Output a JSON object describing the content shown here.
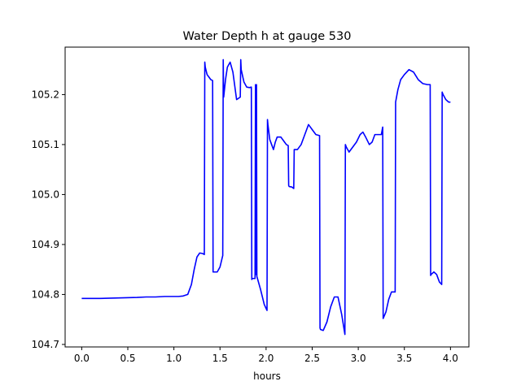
{
  "chart_data": {
    "type": "line",
    "title": "Water Depth h at gauge 530",
    "xlabel": "hours",
    "ylabel": "",
    "xlim": [
      -0.18,
      4.2
    ],
    "ylim": [
      104.695,
      105.295
    ],
    "xticks": [
      0.0,
      0.5,
      1.0,
      1.5,
      2.0,
      2.5,
      3.0,
      3.5,
      4.0
    ],
    "xtick_labels": [
      "0.0",
      "0.5",
      "1.0",
      "1.5",
      "2.0",
      "2.5",
      "3.0",
      "3.5",
      "4.0"
    ],
    "yticks": [
      104.7,
      104.8,
      104.9,
      105.0,
      105.1,
      105.2
    ],
    "ytick_labels": [
      "104.7",
      "104.8",
      "104.9",
      "105.0",
      "105.1",
      "105.2"
    ],
    "grid": false,
    "series": [
      {
        "color": "#0000ff",
        "x": [
          0.0,
          0.2,
          0.4,
          0.6,
          0.7,
          0.8,
          0.9,
          1.0,
          1.05,
          1.1,
          1.15,
          1.19,
          1.22,
          1.25,
          1.28,
          1.31,
          1.33,
          1.335,
          1.34,
          1.36,
          1.38,
          1.4,
          1.42,
          1.425,
          1.43,
          1.47,
          1.5,
          1.53,
          1.535,
          1.54,
          1.56,
          1.58,
          1.61,
          1.64,
          1.68,
          1.72,
          1.725,
          1.73,
          1.76,
          1.79,
          1.82,
          1.84,
          1.845,
          1.85,
          1.88,
          1.885,
          1.89,
          1.893,
          1.896,
          1.9,
          1.94,
          1.98,
          2.01,
          2.015,
          2.02,
          2.04,
          2.06,
          2.08,
          2.1,
          2.12,
          2.14,
          2.16,
          2.18,
          2.2,
          2.22,
          2.24,
          2.245,
          2.25,
          2.28,
          2.3,
          2.305,
          2.31,
          2.34,
          2.38,
          2.42,
          2.46,
          2.5,
          2.54,
          2.58,
          2.585,
          2.59,
          2.62,
          2.66,
          2.7,
          2.74,
          2.78,
          2.82,
          2.855,
          2.86,
          2.87,
          2.9,
          2.94,
          2.98,
          3.02,
          3.05,
          3.08,
          3.12,
          3.15,
          3.18,
          3.22,
          3.25,
          3.265,
          3.27,
          3.3,
          3.33,
          3.36,
          3.4,
          3.405,
          3.41,
          3.43,
          3.46,
          3.5,
          3.55,
          3.6,
          3.65,
          3.7,
          3.75,
          3.78,
          3.785,
          3.79,
          3.82,
          3.85,
          3.88,
          3.905,
          3.91,
          3.92,
          3.95,
          3.98,
          4.0
        ],
        "values": [
          104.792,
          104.792,
          104.793,
          104.794,
          104.795,
          104.795,
          104.796,
          104.796,
          104.796,
          104.797,
          104.8,
          104.82,
          104.85,
          104.875,
          104.883,
          104.882,
          104.88,
          105.265,
          105.255,
          105.24,
          105.235,
          105.23,
          105.228,
          104.845,
          104.845,
          104.845,
          104.855,
          104.878,
          105.27,
          105.195,
          105.23,
          105.255,
          105.265,
          105.245,
          105.19,
          105.195,
          105.27,
          105.25,
          105.225,
          105.215,
          105.214,
          105.215,
          104.83,
          104.832,
          104.832,
          105.22,
          104.84,
          104.84,
          105.22,
          104.836,
          104.81,
          104.78,
          104.768,
          105.15,
          105.14,
          105.11,
          105.1,
          105.09,
          105.105,
          105.115,
          105.115,
          105.115,
          105.11,
          105.105,
          105.1,
          105.098,
          105.018,
          105.016,
          105.015,
          105.012,
          105.09,
          105.09,
          105.09,
          105.1,
          105.12,
          105.14,
          105.13,
          105.12,
          105.118,
          104.733,
          104.73,
          104.728,
          104.745,
          104.775,
          104.795,
          104.795,
          104.76,
          104.72,
          105.1,
          105.095,
          105.085,
          105.095,
          105.105,
          105.12,
          105.125,
          105.115,
          105.1,
          105.105,
          105.12,
          105.12,
          105.12,
          105.135,
          104.752,
          104.765,
          104.79,
          104.805,
          104.805,
          105.185,
          105.19,
          105.21,
          105.23,
          105.24,
          105.25,
          105.245,
          105.23,
          105.222,
          105.22,
          105.22,
          104.838,
          104.84,
          104.845,
          104.84,
          104.825,
          104.82,
          105.205,
          105.2,
          105.19,
          105.185,
          105.185
        ]
      }
    ]
  }
}
